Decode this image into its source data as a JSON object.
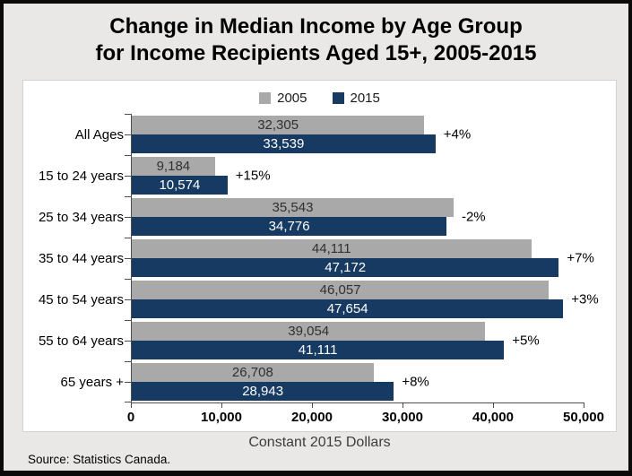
{
  "title": {
    "line1": "Change in Median Income by Age Group",
    "line2": "for Income Recipients Aged 15+, 2005-2015"
  },
  "source_note": "Source: Statistics Canada.",
  "colors": {
    "bar_2005": "#a9a9a9",
    "bar_2015": "#173a63",
    "background": "#e9e8e6",
    "axis": "#4d4d4d",
    "value_label_2005": "#303030",
    "value_label_2015": "#ffffff"
  },
  "chart_data": {
    "type": "bar",
    "orientation": "horizontal",
    "title": "Change in Median Income by Age Group for Income Recipients Aged 15+, 2005-2015",
    "categories": [
      "All Ages",
      "15 to 24 years",
      "25 to 34 years",
      "35 to 44 years",
      "45 to 54 years",
      "55 to 64 years",
      "65 years +"
    ],
    "series": [
      {
        "name": "2005",
        "color_key": "bar_2005",
        "values": [
          32305,
          9184,
          35543,
          44111,
          46057,
          39054,
          26708
        ],
        "labels": [
          "32,305",
          "9,184",
          "35,543",
          "44,111",
          "46,057",
          "39,054",
          "26,708"
        ]
      },
      {
        "name": "2015",
        "color_key": "bar_2015",
        "values": [
          33539,
          10574,
          34776,
          47172,
          47654,
          41111,
          28943
        ],
        "labels": [
          "33,539",
          "10,574",
          "34,776",
          "47,172",
          "47,654",
          "41,111",
          "28,943"
        ]
      }
    ],
    "change_labels": [
      "+4%",
      "+15%",
      "-2%",
      "+7%",
      "+3%",
      "+5%",
      "+8%"
    ],
    "xlabel": "Constant 2015 Dollars",
    "x_ticks": [
      "0",
      "10,000",
      "20,000",
      "30,000",
      "40,000",
      "50,000"
    ],
    "xlim": [
      0,
      50000
    ],
    "legend_position": "top",
    "grid": false
  }
}
